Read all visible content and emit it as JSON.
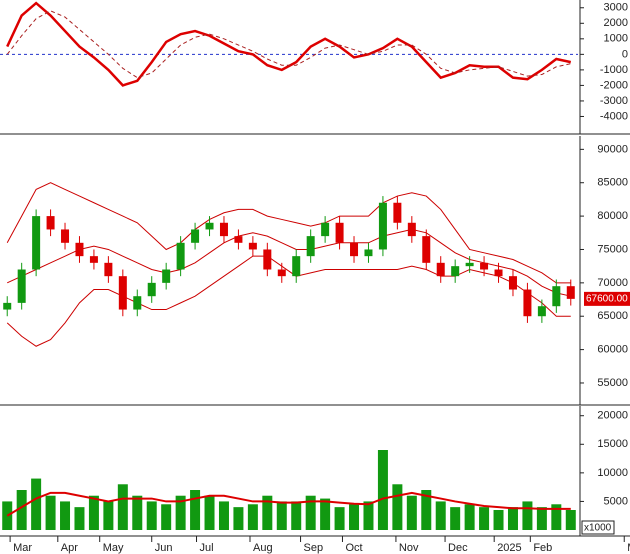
{
  "chart_data": [
    {
      "type": "line",
      "ylim": [
        -5000,
        3500
      ],
      "yticks": [
        3000,
        2000,
        1000,
        0,
        -1000,
        -2000,
        -3000,
        -4000
      ],
      "xlim": [
        -0.5,
        39.5
      ],
      "reference_line": 0,
      "x": [
        0,
        1,
        2,
        3,
        4,
        5,
        6,
        7,
        8,
        9,
        10,
        11,
        12,
        13,
        14,
        15,
        16,
        17,
        18,
        19,
        20,
        21,
        22,
        23,
        24,
        25,
        26,
        27,
        28,
        29,
        30,
        31,
        32,
        33,
        34,
        35,
        36,
        37,
        38,
        39
      ],
      "series": [
        {
          "color": "#dd0000",
          "values": [
            500,
            2500,
            3300,
            2500,
            1500,
            500,
            -200,
            -1000,
            -2000,
            -1700,
            -500,
            800,
            1300,
            1500,
            1200,
            700,
            200,
            0,
            -700,
            -1000,
            -500,
            500,
            1000,
            500,
            -200,
            0,
            400,
            1000,
            500,
            -500,
            -1500,
            -1200,
            -700,
            -800,
            -800,
            -1500,
            -1600,
            -1000,
            -300,
            -500
          ]
        },
        {
          "color": "#aa2222",
          "dashed": true,
          "values": [
            0,
            1200,
            2300,
            2800,
            2400,
            1600,
            800,
            0,
            -900,
            -1500,
            -1200,
            -300,
            600,
            1100,
            1300,
            1000,
            600,
            200,
            -300,
            -700,
            -700,
            -200,
            400,
            600,
            300,
            0,
            200,
            600,
            600,
            0,
            -900,
            -1200,
            -1000,
            -900,
            -800,
            -1100,
            -1400,
            -1300,
            -800,
            -600
          ]
        }
      ]
    },
    {
      "type": "candlestick",
      "ylim": [
        52000,
        92000
      ],
      "yticks": [
        90000,
        85000,
        80000,
        75000,
        70000,
        65000,
        60000,
        55000
      ],
      "xlim": [
        -0.5,
        39.5
      ],
      "up_color": "#119911",
      "down_color": "#dd0000",
      "band_color": "#cc0000",
      "last_price_label": "67600.00",
      "x": [
        0,
        1,
        2,
        3,
        4,
        5,
        6,
        7,
        8,
        9,
        10,
        11,
        12,
        13,
        14,
        15,
        16,
        17,
        18,
        19,
        20,
        21,
        22,
        23,
        24,
        25,
        26,
        27,
        28,
        29,
        30,
        31,
        32,
        33,
        34,
        35,
        36,
        37,
        38,
        39
      ],
      "open": [
        66000,
        67000,
        72000,
        80000,
        78000,
        76000,
        74000,
        73000,
        71000,
        66000,
        68000,
        70000,
        72000,
        76000,
        78000,
        79000,
        77000,
        76000,
        75000,
        72000,
        71000,
        74000,
        77000,
        79000,
        76000,
        74000,
        75000,
        82000,
        79000,
        77000,
        73000,
        71000,
        72500,
        73000,
        72000,
        71000,
        69000,
        65000,
        66500,
        69500
      ],
      "high": [
        68000,
        73000,
        81000,
        81000,
        79000,
        77000,
        75000,
        74000,
        72000,
        69000,
        71000,
        73000,
        77000,
        79000,
        80000,
        80000,
        78000,
        77000,
        76000,
        73000,
        75000,
        78000,
        80000,
        80000,
        77000,
        76000,
        83000,
        83000,
        80000,
        78000,
        74000,
        73500,
        74000,
        74000,
        73000,
        72000,
        70000,
        67500,
        70500,
        70500
      ],
      "low": [
        65000,
        66000,
        71000,
        77000,
        75000,
        73000,
        72000,
        70000,
        65000,
        65000,
        67000,
        69000,
        71000,
        75000,
        77000,
        76000,
        75000,
        74000,
        71000,
        70000,
        70000,
        73000,
        76000,
        75000,
        73000,
        73000,
        74000,
        78000,
        76000,
        72000,
        70000,
        70000,
        71500,
        71000,
        70000,
        68000,
        64000,
        64000,
        65500,
        66600
      ],
      "close": [
        67000,
        72000,
        80000,
        78000,
        76000,
        74000,
        73000,
        71000,
        66000,
        68000,
        70000,
        72000,
        76000,
        78000,
        79000,
        77000,
        76000,
        75000,
        72000,
        71000,
        74000,
        77000,
        79000,
        76000,
        74000,
        75000,
        82000,
        79000,
        77000,
        73000,
        71000,
        72500,
        73000,
        72000,
        71000,
        69000,
        65000,
        66500,
        69500,
        67600
      ],
      "bands": [
        {
          "values": [
            76000,
            80000,
            84000,
            85000,
            84000,
            83000,
            82000,
            81000,
            80000,
            79000,
            77000,
            75000,
            76000,
            78000,
            79500,
            80500,
            81000,
            81000,
            80000,
            79500,
            79000,
            78500,
            79000,
            80000,
            80000,
            80000,
            82000,
            83000,
            83500,
            83000,
            81000,
            78000,
            75000,
            74500,
            74000,
            73500,
            72500,
            71500,
            70000,
            70000
          ]
        },
        {
          "values": [
            70000,
            71000,
            72000,
            73000,
            74000,
            75000,
            75500,
            75000,
            74000,
            73000,
            72000,
            71500,
            72000,
            73000,
            74500,
            76000,
            77000,
            77500,
            77000,
            76000,
            75000,
            75000,
            75500,
            76000,
            76000,
            76000,
            77000,
            77500,
            78000,
            77500,
            76000,
            74500,
            73500,
            73000,
            72500,
            72000,
            71000,
            69500,
            68500,
            68000
          ]
        },
        {
          "values": [
            64000,
            62000,
            60500,
            61500,
            64000,
            67000,
            69000,
            69000,
            68000,
            67000,
            66000,
            66000,
            67000,
            68000,
            69500,
            71000,
            72500,
            74000,
            74000,
            72500,
            71000,
            71500,
            72000,
            72000,
            72000,
            72000,
            72000,
            72000,
            72500,
            72000,
            71000,
            71000,
            72000,
            71500,
            71000,
            70000,
            68500,
            67000,
            65000,
            65000
          ]
        }
      ]
    },
    {
      "type": "bar",
      "ylim": [
        0,
        21700
      ],
      "yticks": [
        20000,
        15000,
        10000,
        5000
      ],
      "xlim": [
        -0.5,
        39.5
      ],
      "y_unit_label": "x1000",
      "x": [
        0,
        1,
        2,
        3,
        4,
        5,
        6,
        7,
        8,
        9,
        10,
        11,
        12,
        13,
        14,
        15,
        16,
        17,
        18,
        19,
        20,
        21,
        22,
        23,
        24,
        25,
        26,
        27,
        28,
        29,
        30,
        31,
        32,
        33,
        34,
        35,
        36,
        37,
        38,
        39
      ],
      "xticks": [
        {
          "value": 0.2,
          "label": "Mar"
        },
        {
          "value": 3.5,
          "label": "Apr"
        },
        {
          "value": 6.4,
          "label": "May"
        },
        {
          "value": 10,
          "label": "Jun"
        },
        {
          "value": 13.1,
          "label": "Jul"
        },
        {
          "value": 16.8,
          "label": "Aug"
        },
        {
          "value": 20.3,
          "label": "Sep"
        },
        {
          "value": 23.2,
          "label": "Oct"
        },
        {
          "value": 26.9,
          "label": "Nov"
        },
        {
          "value": 30.3,
          "label": "Dec"
        },
        {
          "value": 33.7,
          "label": "2025"
        },
        {
          "value": 36.2,
          "label": "Feb"
        },
        {
          "value": 42.7,
          "label": "M"
        }
      ],
      "color": "#119911",
      "values": [
        5000,
        7000,
        9000,
        6000,
        5000,
        4000,
        6000,
        5000,
        8000,
        6000,
        5000,
        4500,
        6000,
        7000,
        6000,
        5000,
        4000,
        4500,
        6000,
        5000,
        5000,
        6000,
        5500,
        4000,
        4500,
        5000,
        14000,
        8000,
        6000,
        7000,
        5000,
        4000,
        4500,
        4000,
        3500,
        4000,
        5000,
        4000,
        4500,
        3500
      ],
      "average": {
        "color": "#dd0000",
        "values": [
          2500,
          4000,
          5500,
          6500,
          6500,
          6000,
          5500,
          5000,
          5500,
          5500,
          5500,
          5000,
          5000,
          5500,
          6000,
          6000,
          5500,
          5000,
          5000,
          4800,
          4800,
          5000,
          5000,
          4800,
          4600,
          4500,
          5500,
          6000,
          6500,
          6000,
          5500,
          5000,
          4600,
          4200,
          4000,
          3800,
          3800,
          3700,
          3700,
          3700
        ]
      }
    }
  ]
}
